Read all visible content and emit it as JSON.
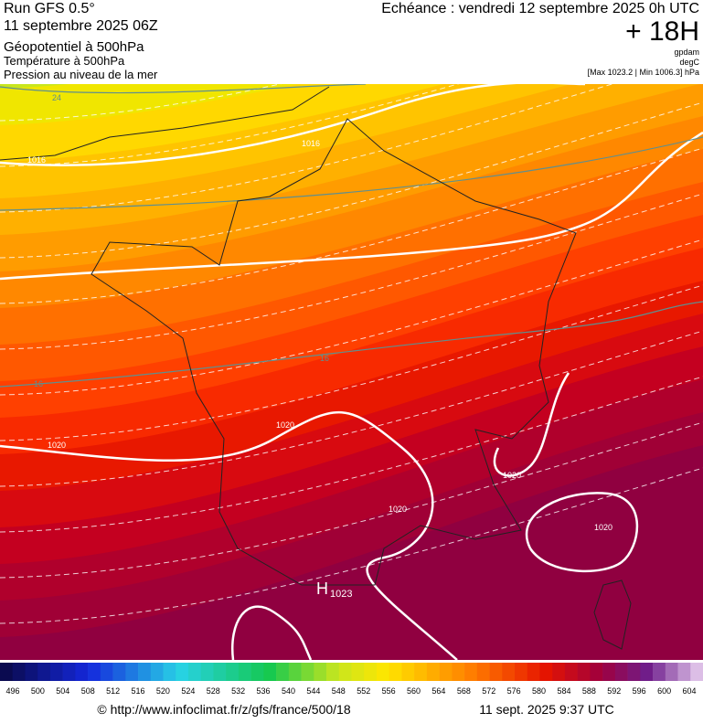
{
  "header": {
    "run": "Run GFS 0.5°",
    "run_date": "11 septembre 2025 06Z",
    "echeance": "Echéance : vendredi 12 septembre 2025 0h UTC",
    "lead": "+ 18H",
    "layers": [
      "Géopotentiel à 500hPa",
      "Température à 500hPa",
      "Pression au niveau de la mer"
    ],
    "units": [
      "gpdam",
      "degC",
      "[Max 1023.2 | Min 1006.3] hPa"
    ]
  },
  "map": {
    "contour_labels": [
      "24",
      "1016",
      "1016",
      "16",
      "16",
      "1020",
      "1020",
      "1020",
      "1020",
      "1020"
    ],
    "high": {
      "symbol": "H",
      "value": "1023"
    }
  },
  "legend": {
    "labels": [
      "496",
      "500",
      "504",
      "508",
      "512",
      "516",
      "520",
      "524",
      "528",
      "532",
      "536",
      "540",
      "544",
      "548",
      "552",
      "556",
      "560",
      "564",
      "568",
      "572",
      "576",
      "580",
      "584",
      "588",
      "592",
      "596",
      "600",
      "604"
    ]
  },
  "footer": {
    "url": "© http://www.infoclimat.fr/z/gfs/france/500/18",
    "timestamp": "11 sept. 2025  9:37 UTC"
  }
}
